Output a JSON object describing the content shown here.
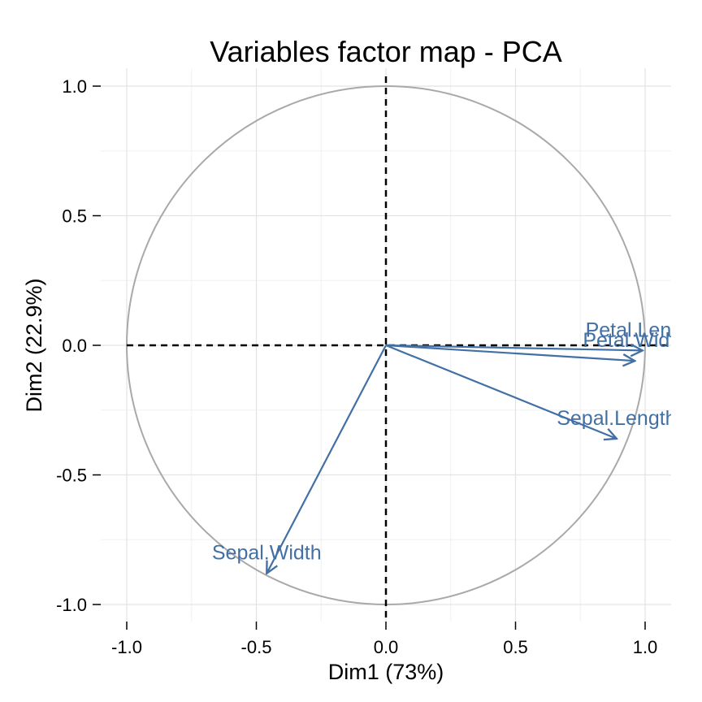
{
  "chart_data": {
    "type": "scatter",
    "title": "Variables factor map - PCA",
    "xlabel": "Dim1 (73%)",
    "ylabel": "Dim2 (22.9%)",
    "xlim": [
      -1.1,
      1.1
    ],
    "ylim": [
      -1.1,
      1.1
    ],
    "xticks": [
      -1.0,
      -0.5,
      0.0,
      0.5,
      1.0
    ],
    "xtick_labels": [
      "-1.0",
      "-0.5",
      "0.0",
      "0.5",
      "1.0"
    ],
    "yticks": [
      -1.0,
      -0.5,
      0.0,
      0.5,
      1.0
    ],
    "ytick_labels": [
      "-1.0",
      "-0.5",
      "0.0",
      "0.5",
      "1.0"
    ],
    "grid": true,
    "unit_circle": true,
    "variables": [
      {
        "name": "Sepal.Length",
        "x": 0.89,
        "y": -0.36
      },
      {
        "name": "Sepal.Width",
        "x": -0.46,
        "y": -0.88
      },
      {
        "name": "Petal.Length",
        "x": 0.99,
        "y": -0.02
      },
      {
        "name": "Petal.Width",
        "x": 0.96,
        "y": -0.06
      }
    ],
    "colors": {
      "arrow": "#4270A5",
      "circle": "#A9A9A9",
      "grid_major": "#E3E3E3",
      "grid_minor": "#F0F0F0",
      "reference_line": "#000000"
    }
  }
}
